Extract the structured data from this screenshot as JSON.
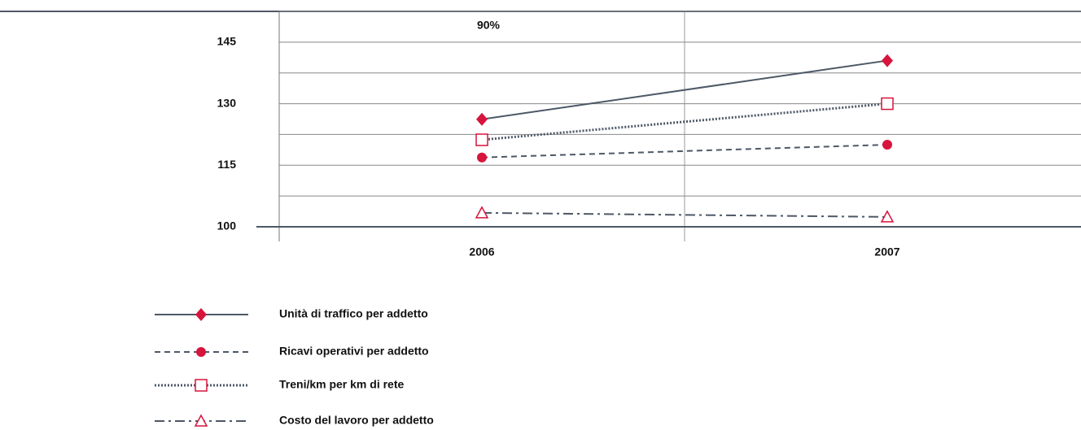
{
  "chart_data": {
    "type": "line",
    "annotation": "90%",
    "categories": [
      "2006",
      "2007"
    ],
    "series": [
      {
        "name": "Unità di traffico per addetto",
        "color": "#4d5866",
        "marker_color": "#d7143c",
        "marker": "diamond",
        "dash": "solid",
        "values": [
          126.2,
          140.5
        ]
      },
      {
        "name": "Ricavi operativi per addetto",
        "color": "#4d5866",
        "marker_color": "#d7143c",
        "marker": "circle",
        "dash": "dashed",
        "values": [
          116.9,
          120
        ]
      },
      {
        "name": "Treni/km per km di rete",
        "color": "#4d5866",
        "marker_color": "#d7143c",
        "marker": "open-square",
        "dash": "dotted",
        "values": [
          121.2,
          130
        ]
      },
      {
        "name": "Costo del lavoro per addetto",
        "color": "#4d5866",
        "marker_color": "#d7143c",
        "marker": "open-triangle",
        "dash": "dashdot",
        "values": [
          103.4,
          102.4
        ]
      }
    ],
    "ylim": [
      100,
      152.5
    ],
    "yticks": [
      100,
      115,
      130,
      145
    ],
    "yminorticks": [
      107.5,
      122.5,
      137.5,
      152.5
    ],
    "grid": true
  }
}
